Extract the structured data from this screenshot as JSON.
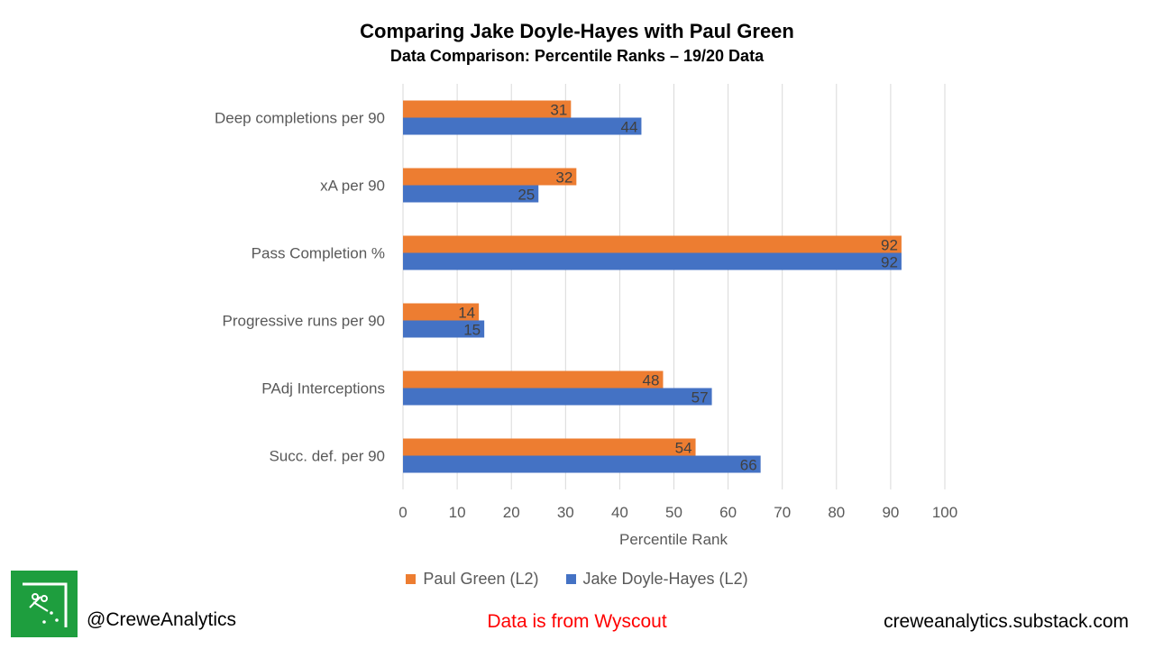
{
  "chart_data": {
    "type": "bar",
    "orientation": "horizontal",
    "title": "Comparing Jake Doyle-Hayes with Paul Green",
    "subtitle": "Data Comparison: Percentile Ranks – 19/20 Data",
    "xlabel": "Percentile Rank",
    "ylabel": "",
    "xlim": [
      0,
      100
    ],
    "xticks": [
      0,
      10,
      20,
      30,
      40,
      50,
      60,
      70,
      80,
      90,
      100
    ],
    "grid": true,
    "legend_position": "bottom",
    "categories": [
      "Deep completions per 90",
      "xA per 90",
      "Pass Completion %",
      "Progressive runs per 90",
      "PAdj Interceptions",
      "Succ. def. per 90"
    ],
    "series": [
      {
        "name": "Paul Green (L2)",
        "color": "#ed7d31",
        "values": [
          31,
          32,
          92,
          14,
          48,
          54
        ]
      },
      {
        "name": "Jake Doyle-Hayes (L2)",
        "color": "#4472c4",
        "values": [
          44,
          25,
          92,
          15,
          57,
          66
        ]
      }
    ]
  },
  "footer": {
    "handle": "@CreweAnalytics",
    "source": "Data is from Wyscout",
    "website": "creweanalytics.substack.com"
  },
  "logo_icon": "pitch-corner-icon"
}
